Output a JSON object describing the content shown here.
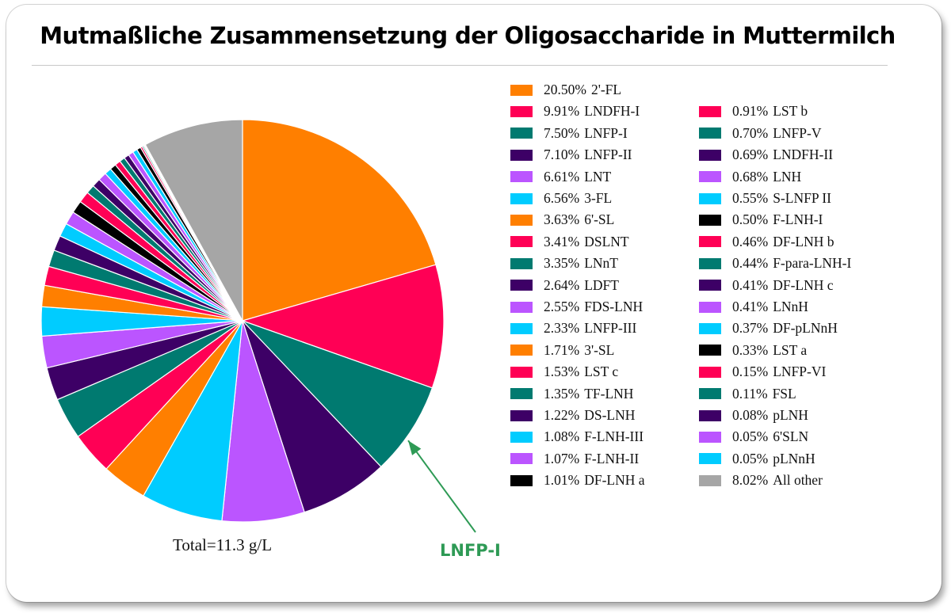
{
  "title": "Mutmaßliche Zusammensetzung der Oligosaccharide  in Muttermilch",
  "total_label": "Total=11.3 g/L",
  "annotation": {
    "text": "LNFP-I",
    "color": "#2e9a55",
    "target": "LNFP-I"
  },
  "chart_data": {
    "type": "pie",
    "title": "Mutmaßliche Zusammensetzung der Oligosaccharide  in Muttermilch",
    "legend_position": "right",
    "slices": [
      {
        "pct_label": "20.50%",
        "label": "2'-FL",
        "value": 20.5,
        "color": "#ff7f00"
      },
      {
        "pct_label": "9.91%",
        "label": "LNDFH-I",
        "value": 9.91,
        "color": "#ff0055"
      },
      {
        "pct_label": "7.50%",
        "label": "LNFP-I",
        "value": 7.5,
        "color": "#007a70"
      },
      {
        "pct_label": "7.10%",
        "label": "LNFP-II",
        "value": 7.1,
        "color": "#3d0066"
      },
      {
        "pct_label": "6.61%",
        "label": "LNT",
        "value": 6.61,
        "color": "#bb55ff"
      },
      {
        "pct_label": "6.56%",
        "label": "3-FL",
        "value": 6.56,
        "color": "#00ccff"
      },
      {
        "pct_label": "3.63%",
        "label": "6'-SL",
        "value": 3.63,
        "color": "#ff7f00"
      },
      {
        "pct_label": "3.41%",
        "label": "DSLNT",
        "value": 3.41,
        "color": "#ff0055"
      },
      {
        "pct_label": "3.35%",
        "label": "LNnT",
        "value": 3.35,
        "color": "#007a70"
      },
      {
        "pct_label": "2.64%",
        "label": "LDFT",
        "value": 2.64,
        "color": "#3d0066"
      },
      {
        "pct_label": "2.55%",
        "label": "FDS-LNH",
        "value": 2.55,
        "color": "#bb55ff"
      },
      {
        "pct_label": "2.33%",
        "label": "LNFP-III",
        "value": 2.33,
        "color": "#00ccff"
      },
      {
        "pct_label": "1.71%",
        "label": "3'-SL",
        "value": 1.71,
        "color": "#ff7f00"
      },
      {
        "pct_label": "1.53%",
        "label": "LST c",
        "value": 1.53,
        "color": "#ff0055"
      },
      {
        "pct_label": "1.35%",
        "label": "TF-LNH",
        "value": 1.35,
        "color": "#007a70"
      },
      {
        "pct_label": "1.22%",
        "label": "DS-LNH",
        "value": 1.22,
        "color": "#3d0066"
      },
      {
        "pct_label": "1.08%",
        "label": "F-LNH-III",
        "value": 1.08,
        "color": "#00ccff"
      },
      {
        "pct_label": "1.07%",
        "label": "F-LNH-II",
        "value": 1.07,
        "color": "#bb55ff"
      },
      {
        "pct_label": "1.01%",
        "label": "DF-LNH a",
        "value": 1.01,
        "color": "#000000"
      },
      {
        "pct_label": "0.91%",
        "label": "LST b",
        "value": 0.91,
        "color": "#ff0055"
      },
      {
        "pct_label": "0.70%",
        "label": "LNFP-V",
        "value": 0.7,
        "color": "#007a70"
      },
      {
        "pct_label": "0.69%",
        "label": "LNDFH-II",
        "value": 0.69,
        "color": "#3d0066"
      },
      {
        "pct_label": "0.68%",
        "label": "LNH",
        "value": 0.68,
        "color": "#bb55ff"
      },
      {
        "pct_label": "0.55%",
        "label": "S-LNFP II",
        "value": 0.55,
        "color": "#00ccff"
      },
      {
        "pct_label": "0.50%",
        "label": "F-LNH-I",
        "value": 0.5,
        "color": "#000000"
      },
      {
        "pct_label": "0.46%",
        "label": "DF-LNH b",
        "value": 0.46,
        "color": "#ff0055"
      },
      {
        "pct_label": "0.44%",
        "label": "F-para-LNH-I",
        "value": 0.44,
        "color": "#007a70"
      },
      {
        "pct_label": "0.41%",
        "label": "DF-LNH c",
        "value": 0.41,
        "color": "#3d0066"
      },
      {
        "pct_label": "0.41%",
        "label": "LNnH",
        "value": 0.41,
        "color": "#bb55ff"
      },
      {
        "pct_label": "0.37%",
        "label": "DF-pLNnH",
        "value": 0.37,
        "color": "#00ccff"
      },
      {
        "pct_label": "0.33%",
        "label": "LST a",
        "value": 0.33,
        "color": "#000000"
      },
      {
        "pct_label": "0.15%",
        "label": "LNFP-VI",
        "value": 0.15,
        "color": "#ff0055"
      },
      {
        "pct_label": "0.11%",
        "label": "FSL",
        "value": 0.11,
        "color": "#007a70"
      },
      {
        "pct_label": "0.08%",
        "label": "pLNH",
        "value": 0.08,
        "color": "#3d0066"
      },
      {
        "pct_label": "0.05%",
        "label": "6'SLN",
        "value": 0.05,
        "color": "#bb55ff"
      },
      {
        "pct_label": "0.05%",
        "label": "pLNnH",
        "value": 0.05,
        "color": "#00ccff"
      },
      {
        "pct_label": "8.02%",
        "label": "All other",
        "value": 8.02,
        "color": "#a6a6a6"
      }
    ]
  }
}
